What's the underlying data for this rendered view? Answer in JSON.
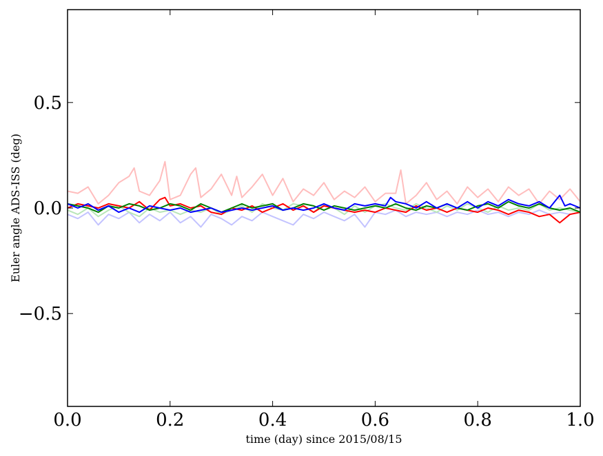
{
  "chart_data": {
    "type": "line",
    "title": "",
    "xlabel": "time (day) since 2015/08/15",
    "ylabel": "Euler angle ADS-ISS (deg)",
    "xlim": [
      0.0,
      1.0
    ],
    "ylim": [
      -0.94,
      0.94
    ],
    "x_ticks": [
      0.0,
      0.2,
      0.4,
      0.6,
      0.8,
      1.0
    ],
    "x_tick_labels": [
      "0.0",
      "0.2",
      "0.4",
      "0.6",
      "0.8",
      "1.0"
    ],
    "y_ticks": [
      -0.5,
      0.0,
      0.5
    ],
    "y_tick_labels": [
      "−0.5",
      "0.0",
      "0.5"
    ],
    "grid": false,
    "legend": "none",
    "series": [
      {
        "color": "#ffbdbd",
        "x": [
          0.0,
          0.02,
          0.04,
          0.06,
          0.08,
          0.1,
          0.12,
          0.13,
          0.14,
          0.16,
          0.18,
          0.19,
          0.2,
          0.22,
          0.24,
          0.25,
          0.26,
          0.28,
          0.3,
          0.32,
          0.33,
          0.34,
          0.36,
          0.38,
          0.4,
          0.42,
          0.44,
          0.46,
          0.48,
          0.5,
          0.52,
          0.54,
          0.56,
          0.58,
          0.6,
          0.62,
          0.64,
          0.65,
          0.66,
          0.68,
          0.7,
          0.72,
          0.74,
          0.76,
          0.78,
          0.8,
          0.82,
          0.84,
          0.86,
          0.88,
          0.9,
          0.92,
          0.94,
          0.96,
          0.98,
          1.0
        ],
        "values": [
          0.08,
          0.07,
          0.1,
          0.02,
          0.06,
          0.12,
          0.15,
          0.19,
          0.08,
          0.06,
          0.13,
          0.22,
          0.04,
          0.06,
          0.16,
          0.19,
          0.05,
          0.09,
          0.16,
          0.06,
          0.15,
          0.05,
          0.1,
          0.16,
          0.06,
          0.14,
          0.03,
          0.09,
          0.06,
          0.12,
          0.04,
          0.08,
          0.05,
          0.1,
          0.03,
          0.07,
          0.07,
          0.18,
          0.02,
          0.06,
          0.12,
          0.04,
          0.08,
          0.02,
          0.1,
          0.05,
          0.09,
          0.03,
          0.1,
          0.06,
          0.09,
          0.02,
          0.08,
          0.04,
          0.09,
          0.03
        ]
      },
      {
        "color": "#c3c3ff",
        "x": [
          0.0,
          0.02,
          0.04,
          0.06,
          0.08,
          0.1,
          0.12,
          0.14,
          0.16,
          0.18,
          0.2,
          0.22,
          0.24,
          0.26,
          0.28,
          0.3,
          0.32,
          0.34,
          0.36,
          0.38,
          0.4,
          0.42,
          0.44,
          0.46,
          0.48,
          0.5,
          0.52,
          0.54,
          0.56,
          0.58,
          0.6,
          0.62,
          0.64,
          0.66,
          0.68,
          0.7,
          0.72,
          0.74,
          0.76,
          0.78,
          0.8,
          0.82,
          0.84,
          0.86,
          0.88,
          0.9,
          0.92,
          0.94,
          0.96,
          0.98,
          1.0
        ],
        "values": [
          -0.03,
          -0.05,
          -0.02,
          -0.08,
          -0.03,
          -0.05,
          -0.02,
          -0.07,
          -0.03,
          -0.06,
          -0.02,
          -0.07,
          -0.04,
          -0.09,
          -0.03,
          -0.05,
          -0.08,
          -0.04,
          -0.06,
          -0.02,
          -0.04,
          -0.06,
          -0.08,
          -0.03,
          -0.05,
          -0.02,
          -0.04,
          -0.06,
          -0.03,
          -0.09,
          -0.02,
          -0.03,
          -0.01,
          -0.04,
          -0.02,
          -0.03,
          -0.02,
          -0.04,
          -0.02,
          -0.03,
          -0.01,
          -0.03,
          -0.02,
          -0.04,
          -0.02,
          -0.03,
          -0.01,
          -0.03,
          -0.02,
          -0.03,
          -0.02
        ]
      },
      {
        "color": "#b9e6b9",
        "x": [
          0.0,
          0.02,
          0.04,
          0.06,
          0.08,
          0.1,
          0.12,
          0.14,
          0.16,
          0.18,
          0.2,
          0.22,
          0.24,
          0.26,
          0.28,
          0.3,
          0.32,
          0.34,
          0.36,
          0.38,
          0.4,
          0.42,
          0.44,
          0.46,
          0.48,
          0.5,
          0.52,
          0.54,
          0.56,
          0.58,
          0.6,
          0.62,
          0.64,
          0.66,
          0.68,
          0.7,
          0.72,
          0.74,
          0.76,
          0.78,
          0.8,
          0.82,
          0.84,
          0.86,
          0.88,
          0.9,
          0.92,
          0.94,
          0.96,
          0.98,
          1.0
        ],
        "values": [
          -0.01,
          -0.03,
          0.0,
          -0.04,
          -0.01,
          0.01,
          -0.02,
          -0.04,
          0.0,
          -0.02,
          -0.01,
          -0.03,
          -0.01,
          -0.02,
          0.0,
          -0.03,
          -0.01,
          0.01,
          -0.02,
          0.02,
          0.0,
          -0.01,
          0.02,
          0.01,
          -0.02,
          0.02,
          0.0,
          -0.03,
          0.01,
          -0.02,
          0.01,
          0.02,
          0.0,
          -0.01,
          0.02,
          0.0,
          -0.02,
          0.01,
          -0.01,
          0.02,
          0.0,
          -0.02,
          0.01,
          -0.01,
          0.0,
          -0.01,
          0.02,
          -0.01,
          0.0,
          -0.01,
          -0.02
        ]
      },
      {
        "color": "#ff0000",
        "x": [
          0.0,
          0.02,
          0.04,
          0.06,
          0.08,
          0.1,
          0.12,
          0.14,
          0.16,
          0.18,
          0.19,
          0.2,
          0.22,
          0.24,
          0.26,
          0.28,
          0.3,
          0.32,
          0.34,
          0.36,
          0.38,
          0.4,
          0.42,
          0.44,
          0.46,
          0.48,
          0.5,
          0.52,
          0.54,
          0.56,
          0.58,
          0.6,
          0.62,
          0.64,
          0.66,
          0.68,
          0.7,
          0.72,
          0.74,
          0.76,
          0.78,
          0.8,
          0.82,
          0.84,
          0.86,
          0.88,
          0.9,
          0.92,
          0.94,
          0.95,
          0.96,
          0.98,
          1.0
        ],
        "values": [
          0.0,
          0.02,
          0.01,
          0.0,
          0.02,
          0.01,
          0.0,
          0.03,
          -0.01,
          0.04,
          0.05,
          0.01,
          0.02,
          0.0,
          0.01,
          -0.02,
          -0.03,
          0.0,
          -0.01,
          0.01,
          -0.02,
          0.0,
          0.02,
          -0.01,
          0.01,
          -0.02,
          0.01,
          0.0,
          -0.01,
          -0.02,
          -0.01,
          -0.02,
          0.0,
          -0.01,
          -0.02,
          0.01,
          -0.01,
          0.0,
          -0.02,
          0.0,
          -0.01,
          -0.02,
          0.0,
          -0.01,
          -0.03,
          -0.01,
          -0.02,
          -0.04,
          -0.03,
          -0.05,
          -0.07,
          -0.03,
          -0.02
        ]
      },
      {
        "color": "#008000",
        "x": [
          0.0,
          0.02,
          0.04,
          0.06,
          0.08,
          0.1,
          0.12,
          0.14,
          0.16,
          0.18,
          0.2,
          0.22,
          0.24,
          0.26,
          0.28,
          0.3,
          0.32,
          0.34,
          0.36,
          0.38,
          0.4,
          0.42,
          0.44,
          0.46,
          0.48,
          0.5,
          0.52,
          0.54,
          0.56,
          0.58,
          0.6,
          0.62,
          0.64,
          0.66,
          0.68,
          0.7,
          0.72,
          0.74,
          0.76,
          0.78,
          0.8,
          0.82,
          0.84,
          0.86,
          0.88,
          0.9,
          0.92,
          0.94,
          0.96,
          0.98,
          1.0
        ],
        "values": [
          0.02,
          0.01,
          0.0,
          -0.02,
          0.01,
          0.0,
          0.02,
          0.01,
          -0.01,
          0.0,
          0.02,
          0.01,
          -0.01,
          0.02,
          0.0,
          -0.02,
          0.0,
          0.02,
          0.0,
          0.01,
          0.02,
          -0.01,
          0.0,
          0.02,
          0.01,
          -0.01,
          0.01,
          0.0,
          -0.01,
          0.0,
          0.01,
          0.0,
          0.02,
          0.0,
          -0.01,
          0.01,
          0.0,
          0.02,
          0.0,
          -0.01,
          0.01,
          0.02,
          0.0,
          0.03,
          0.01,
          0.0,
          0.02,
          0.0,
          -0.01,
          0.0,
          -0.02
        ]
      },
      {
        "color": "#0000ff",
        "x": [
          0.0,
          0.02,
          0.04,
          0.06,
          0.08,
          0.1,
          0.12,
          0.14,
          0.16,
          0.18,
          0.2,
          0.22,
          0.24,
          0.26,
          0.28,
          0.3,
          0.32,
          0.34,
          0.36,
          0.38,
          0.4,
          0.42,
          0.44,
          0.46,
          0.48,
          0.5,
          0.52,
          0.54,
          0.56,
          0.58,
          0.6,
          0.62,
          0.63,
          0.64,
          0.66,
          0.68,
          0.7,
          0.72,
          0.74,
          0.76,
          0.78,
          0.8,
          0.82,
          0.84,
          0.86,
          0.88,
          0.9,
          0.92,
          0.94,
          0.96,
          0.97,
          0.98,
          1.0
        ],
        "values": [
          0.02,
          0.0,
          0.02,
          -0.01,
          0.01,
          -0.02,
          0.0,
          -0.02,
          0.01,
          0.0,
          -0.01,
          0.0,
          -0.02,
          -0.01,
          0.0,
          -0.02,
          -0.01,
          0.0,
          -0.01,
          0.0,
          0.01,
          -0.01,
          0.0,
          -0.01,
          0.0,
          0.02,
          0.0,
          -0.01,
          0.02,
          0.01,
          0.02,
          0.01,
          0.05,
          0.03,
          0.02,
          0.0,
          0.03,
          0.0,
          0.02,
          0.0,
          0.03,
          0.0,
          0.03,
          0.01,
          0.04,
          0.02,
          0.01,
          0.03,
          0.0,
          0.06,
          0.01,
          0.02,
          0.0
        ]
      }
    ]
  }
}
